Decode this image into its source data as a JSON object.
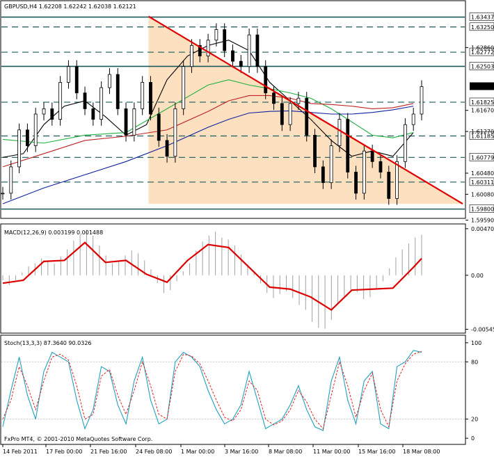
{
  "chart_data": {
    "type": "line",
    "main": {
      "header": "GBPUSD,H4  1.62208 1.62242 1.62038 1.62121",
      "ylim": [
        1.5965,
        1.6355
      ],
      "y_ticks": [
        "1.62860",
        "1.61670",
        "1.61270",
        "1.60480",
        "1.60080",
        "1.59590"
      ],
      "current_price": "1.62121",
      "level_lines": [
        {
          "label": "1.63437",
          "value": 1.63437,
          "style": "solid"
        },
        {
          "label": "1.63250",
          "value": 1.6325,
          "style": "dash"
        },
        {
          "label": "1.62772",
          "value": 1.62772,
          "style": "dash"
        },
        {
          "label": "1.62503",
          "value": 1.62503,
          "style": "solid"
        },
        {
          "label": "1.61825",
          "value": 1.61825,
          "style": "dash"
        },
        {
          "label": "1.61185",
          "value": 1.61185,
          "style": "dash"
        },
        {
          "label": "1.60779",
          "value": 1.60779,
          "style": "dash"
        },
        {
          "label": "1.60311",
          "value": 1.60311,
          "style": "dash"
        },
        {
          "label": "1.59800",
          "value": 1.598,
          "style": "solid"
        }
      ],
      "shaded_zone": {
        "x_from": 3,
        "x_to": 11.2,
        "color": "#fce0c0"
      },
      "trendline": {
        "from": [
          3.55,
          1.6345
        ],
        "to": [
          11.2,
          1.599
        ],
        "color": "#e00000"
      },
      "series": [
        {
          "name": "",
          "color": "#000000",
          "x": [
            0,
            0.5,
            1,
            1.5,
            2,
            2.5,
            3,
            3.5,
            4,
            4.5,
            5,
            5.5,
            6,
            6.5,
            7,
            7.5,
            8,
            8.5,
            9,
            9.5,
            10
          ],
          "values": [
            1.6078,
            1.6085,
            1.614,
            1.6175,
            1.6185,
            1.6155,
            1.612,
            1.614,
            1.6225,
            1.627,
            1.629,
            1.63,
            1.628,
            1.622,
            1.6185,
            1.615,
            1.611,
            1.608,
            1.609,
            1.608,
            1.6125
          ]
        },
        {
          "name": "",
          "color": "#20b040",
          "x": [
            0,
            1,
            2,
            3,
            4,
            5,
            5.5,
            6,
            6.5,
            7,
            7.5,
            8,
            8.5,
            9,
            9.5,
            10
          ],
          "values": [
            1.6112,
            1.6105,
            1.612,
            1.6125,
            1.617,
            1.6215,
            1.6225,
            1.6215,
            1.6208,
            1.62,
            1.619,
            1.617,
            1.6145,
            1.612,
            1.6115,
            1.6125
          ]
        },
        {
          "name": "",
          "color": "#c02020",
          "x": [
            0,
            1,
            2,
            3,
            4,
            5,
            5.5,
            6,
            6.5,
            7,
            7.5,
            8,
            8.5,
            9,
            9.5,
            10
          ],
          "values": [
            1.606,
            1.6085,
            1.611,
            1.6118,
            1.613,
            1.6165,
            1.6185,
            1.6195,
            1.6195,
            1.619,
            1.618,
            1.6178,
            1.6175,
            1.617,
            1.6172,
            1.618
          ]
        },
        {
          "name": "",
          "color": "#1020a0",
          "x": [
            0,
            1,
            2,
            3,
            4,
            5,
            5.5,
            6,
            6.5,
            7,
            7.5,
            8,
            8.5,
            9,
            9.5,
            10
          ],
          "values": [
            1.599,
            1.602,
            1.6045,
            1.607,
            1.61,
            1.6135,
            1.615,
            1.6162,
            1.6165,
            1.6166,
            1.6163,
            1.616,
            1.616,
            1.6163,
            1.6168,
            1.6175
          ]
        }
      ],
      "price": {
        "x": [
          0,
          0.2,
          0.4,
          0.6,
          0.8,
          1,
          1.2,
          1.4,
          1.6,
          1.8,
          2,
          2.2,
          2.4,
          2.6,
          2.8,
          3,
          3.2,
          3.4,
          3.6,
          3.8,
          4,
          4.2,
          4.4,
          4.6,
          4.8,
          5,
          5.2,
          5.4,
          5.6,
          5.8,
          6,
          6.2,
          6.4,
          6.6,
          6.8,
          7,
          7.2,
          7.4,
          7.6,
          7.8,
          8,
          8.2,
          8.4,
          8.6,
          8.8,
          9,
          9.2,
          9.4,
          9.6,
          9.8,
          10,
          10.2
        ],
        "values": [
          1.601,
          1.606,
          1.613,
          1.61,
          1.616,
          1.617,
          1.615,
          1.622,
          1.625,
          1.62,
          1.617,
          1.615,
          1.621,
          1.6235,
          1.617,
          1.612,
          1.617,
          1.622,
          1.616,
          1.611,
          1.608,
          1.617,
          1.625,
          1.629,
          1.627,
          1.63,
          1.632,
          1.628,
          1.626,
          1.625,
          1.631,
          1.625,
          1.62,
          1.618,
          1.614,
          1.618,
          1.619,
          1.612,
          1.606,
          1.603,
          1.61,
          1.615,
          1.605,
          1.601,
          1.609,
          1.607,
          1.605,
          1.6,
          1.607,
          1.614,
          1.616,
          1.6212
        ]
      }
    },
    "macd": {
      "header": "MACD(12,26,9) 0.003199 0.001488",
      "ylim": [
        -0.0057,
        0.0049
      ],
      "y_ticks": [
        "0.00470",
        "0.00",
        "-0.00545"
      ],
      "histogram": [
        -0.0005,
        -0.001,
        -0.0005,
        0.0003,
        0.0009,
        0.0012,
        0.0017,
        0.0015,
        0.0012,
        0.0019,
        0.0026,
        0.0035,
        0.0041,
        0.0046,
        0.004,
        0.003,
        0.002,
        0.0012,
        0.0014,
        0.002,
        0.0025,
        0.0022,
        0.0015,
        0.0006,
        -0.0008,
        -0.0018,
        -0.0015,
        -0.0006,
        0.0004,
        0.0012,
        0.0025,
        0.0034,
        0.004,
        0.0044,
        0.0038,
        0.0036,
        0.003,
        0.0021,
        0.0011,
        0.0003,
        -0.0008,
        -0.0018,
        -0.0023,
        -0.0019,
        -0.0016,
        -0.0023,
        -0.003,
        -0.0035,
        -0.0047,
        -0.0053,
        -0.0054,
        -0.0045,
        -0.0028,
        -0.0022,
        -0.0015,
        -0.0017,
        -0.0024,
        -0.0022,
        -0.0013,
        -0.0006,
        0.0007,
        0.0018,
        0.0026,
        0.0032,
        0.0038,
        0.0041
      ],
      "signal": {
        "x": [
          0,
          0.5,
          1,
          1.5,
          2,
          2.5,
          3,
          3.5,
          4,
          4.5,
          5,
          5.5,
          6,
          6.5,
          7,
          7.5,
          8,
          8.5,
          9,
          9.5,
          10,
          10.2
        ],
        "values": [
          -0.0008,
          -0.0005,
          0.0014,
          0.0015,
          0.0033,
          0.0013,
          0.0015,
          0.0001,
          -0.0007,
          0.0015,
          0.0031,
          0.0028,
          0.0008,
          -0.0012,
          -0.0014,
          -0.0022,
          -0.0035,
          -0.0015,
          -0.0014,
          -0.0013,
          0.0008,
          0.0017
        ]
      }
    },
    "stoch": {
      "header": "Stoch(13,3,3) 87.3640 90.0326",
      "ylim": [
        -5,
        105
      ],
      "y_ticks": [
        "100",
        "80",
        "20",
        "0"
      ],
      "main_line": {
        "color": "#20a0c0",
        "x": [
          0,
          0.2,
          0.4,
          0.6,
          0.8,
          1,
          1.2,
          1.4,
          1.6,
          1.8,
          2,
          2.2,
          2.4,
          2.6,
          2.8,
          3,
          3.2,
          3.4,
          3.6,
          3.8,
          4,
          4.2,
          4.4,
          4.6,
          4.8,
          5,
          5.2,
          5.4,
          5.6,
          5.8,
          6,
          6.2,
          6.4,
          6.6,
          6.8,
          7,
          7.2,
          7.4,
          7.6,
          7.8,
          8,
          8.2,
          8.4,
          8.6,
          8.8,
          9,
          9.2,
          9.4,
          9.6,
          9.8,
          10,
          10.2
        ],
        "values": [
          12,
          50,
          85,
          45,
          20,
          70,
          90,
          85,
          80,
          40,
          10,
          30,
          75,
          70,
          35,
          15,
          60,
          85,
          40,
          15,
          20,
          80,
          90,
          85,
          75,
          50,
          30,
          15,
          20,
          35,
          70,
          40,
          10,
          15,
          20,
          35,
          55,
          30,
          12,
          8,
          60,
          85,
          40,
          15,
          60,
          70,
          15,
          10,
          75,
          80,
          92,
          90
        ]
      },
      "signal_line": {
        "color": "#e02020",
        "x": [
          0,
          0.2,
          0.4,
          0.6,
          0.8,
          1,
          1.2,
          1.4,
          1.6,
          1.8,
          2,
          2.2,
          2.4,
          2.6,
          2.8,
          3,
          3.2,
          3.4,
          3.6,
          3.8,
          4,
          4.2,
          4.4,
          4.6,
          4.8,
          5,
          5.2,
          5.4,
          5.6,
          5.8,
          6,
          6.2,
          6.4,
          6.6,
          6.8,
          7,
          7.2,
          7.4,
          7.6,
          7.8,
          8,
          8.2,
          8.4,
          8.6,
          8.8,
          9,
          9.2,
          9.4,
          9.6,
          9.8,
          10,
          10.2
        ],
        "values": [
          20,
          40,
          75,
          55,
          30,
          60,
          85,
          88,
          82,
          55,
          20,
          25,
          65,
          72,
          45,
          25,
          50,
          80,
          55,
          25,
          20,
          70,
          88,
          86,
          78,
          60,
          40,
          22,
          18,
          30,
          60,
          50,
          20,
          14,
          18,
          30,
          50,
          38,
          20,
          10,
          45,
          80,
          55,
          22,
          50,
          68,
          30,
          12,
          60,
          78,
          88,
          91
        ]
      }
    },
    "x_ticks": [
      "14 Feb 2011",
      "17 Feb 00:00",
      "21 Feb 16:00",
      "24 Feb 08:00",
      "1 Mar 00:00",
      "3 Mar 16:00",
      "8 Mar 08:00",
      "11 Mar 00:00",
      "15 Mar 16:00",
      "18 Mar 08:00"
    ],
    "footer": "FxPro MT4, © 2001-2010 MetaQuotes Software Corp."
  }
}
